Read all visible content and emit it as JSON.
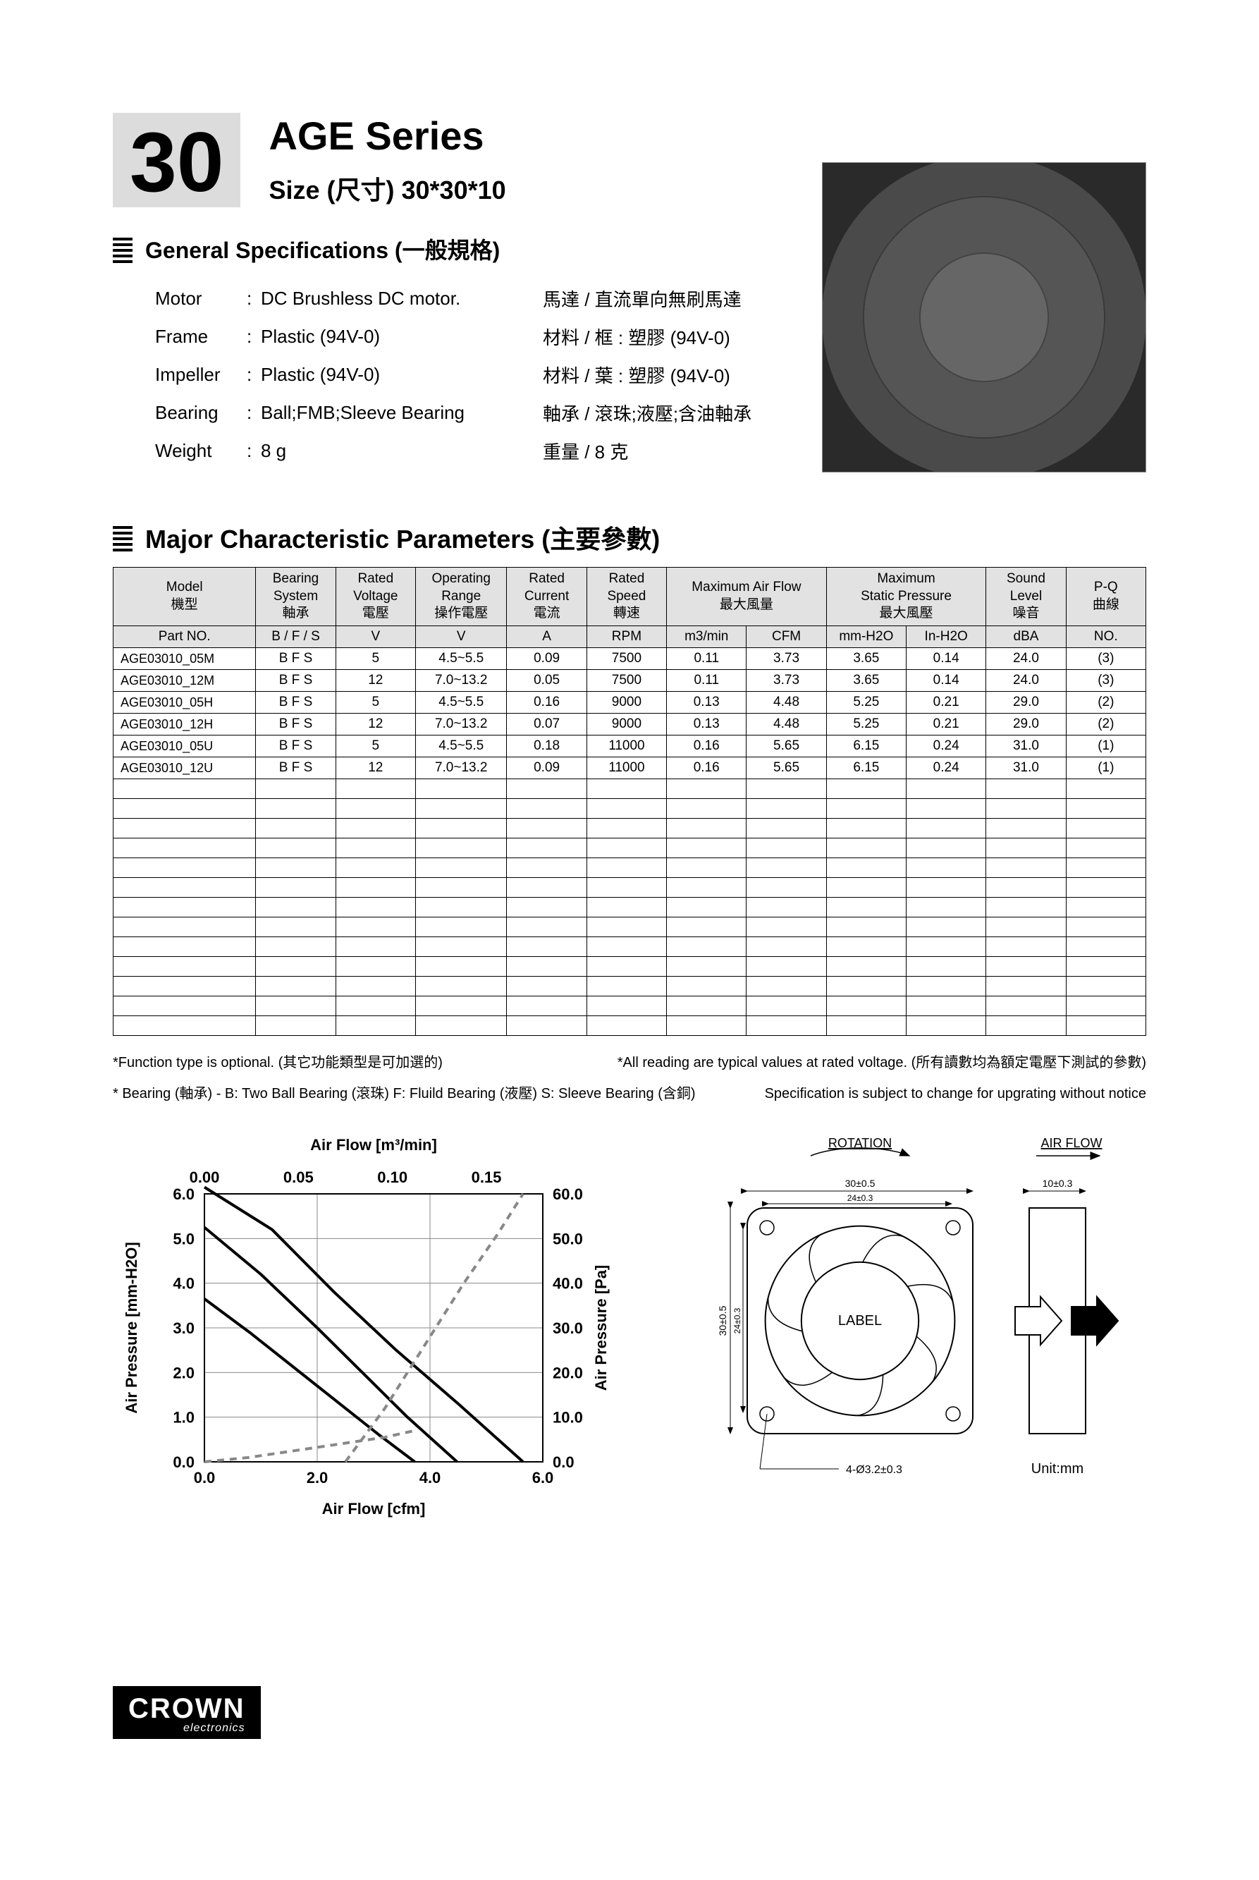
{
  "header": {
    "number": "30",
    "series_title": "AGE Series",
    "size_line": "Size (尺寸) 30*30*10",
    "title_fontsize": 56,
    "size_fontsize": 36
  },
  "general_specs": {
    "section_title": "General Specifications  (一般規格)",
    "title_fontsize": 32,
    "rows": [
      {
        "label": "Motor",
        "value": "DC Brushless DC motor.",
        "zh": "馬達 / 直流單向無刷馬達"
      },
      {
        "label": "Frame",
        "value": "Plastic (94V-0)",
        "zh": "材料 / 框 : 塑膠 (94V-0)"
      },
      {
        "label": "Impeller",
        "value": "Plastic (94V-0)",
        "zh": "材料 / 葉 : 塑膠 (94V-0)"
      },
      {
        "label": "Bearing",
        "value": "Ball;FMB;Sleeve Bearing",
        "zh": "軸承 / 滾珠;液壓;含油軸承"
      },
      {
        "label": "Weight",
        "value": "8  g",
        "zh": "重量 / 8  克"
      }
    ]
  },
  "params": {
    "section_title": "Major Characteristic Parameters (主要參數)",
    "title_fontsize": 36,
    "col_widths_pct": [
      12.5,
      7,
      7,
      8,
      7,
      7,
      7,
      7,
      7,
      7,
      7,
      7
    ],
    "header_row1": [
      {
        "text": "Model\n機型",
        "span": 1
      },
      {
        "text": "Bearing\nSystem\n軸承",
        "span": 1
      },
      {
        "text": "Rated\nVoltage\n電壓",
        "span": 1
      },
      {
        "text": "Operating\nRange\n操作電壓",
        "span": 1
      },
      {
        "text": "Rated\nCurrent\n電流",
        "span": 1
      },
      {
        "text": "Rated\nSpeed\n轉速",
        "span": 1
      },
      {
        "text": "Maximum Air Flow\n最大風量",
        "span": 2
      },
      {
        "text": "Maximum\nStatic  Pressure\n最大風壓",
        "span": 2
      },
      {
        "text": "Sound\nLevel\n噪音",
        "span": 1
      },
      {
        "text": "P-Q\n曲線",
        "span": 1
      }
    ],
    "header_row2": [
      "Part NO.",
      "B / F / S",
      "V",
      "V",
      "A",
      "RPM",
      "m3/min",
      "CFM",
      "mm-H2O",
      "In-H2O",
      "dBA",
      "NO."
    ],
    "rows": [
      [
        "AGE03010_05M",
        "B F S",
        "5",
        "4.5~5.5",
        "0.09",
        "7500",
        "0.11",
        "3.73",
        "3.65",
        "0.14",
        "24.0",
        "(3)"
      ],
      [
        "AGE03010_12M",
        "B F S",
        "12",
        "7.0~13.2",
        "0.05",
        "7500",
        "0.11",
        "3.73",
        "3.65",
        "0.14",
        "24.0",
        "(3)"
      ],
      [
        "AGE03010_05H",
        "B F S",
        "5",
        "4.5~5.5",
        "0.16",
        "9000",
        "0.13",
        "4.48",
        "5.25",
        "0.21",
        "29.0",
        "(2)"
      ],
      [
        "AGE03010_12H",
        "B F S",
        "12",
        "7.0~13.2",
        "0.07",
        "9000",
        "0.13",
        "4.48",
        "5.25",
        "0.21",
        "29.0",
        "(2)"
      ],
      [
        "AGE03010_05U",
        "B F S",
        "5",
        "4.5~5.5",
        "0.18",
        "11000",
        "0.16",
        "5.65",
        "6.15",
        "0.24",
        "31.0",
        "(1)"
      ],
      [
        "AGE03010_12U",
        "B F S",
        "12",
        "7.0~13.2",
        "0.09",
        "11000",
        "0.16",
        "5.65",
        "6.15",
        "0.24",
        "31.0",
        "(1)"
      ]
    ],
    "empty_rows": 13
  },
  "footnotes": {
    "fn1_left": "*Function type is optional. (其它功能類型是可加選的)",
    "fn1_right": "*All reading are typical values at rated voltage. (所有讀數均為額定電壓下測試的參數)",
    "fn2_left": "* Bearing (軸承) - B: Two Ball Bearing (滾珠) F: Fluild Bearing (液壓)  S: Sleeve Bearing (含銅)",
    "fn2_right": "Specification is subject to change for upgrating without notice"
  },
  "chart": {
    "type": "line",
    "title_top": "Air Flow [m³/min]",
    "ylabel_left": "Air Pressure [mm-H2O]",
    "xlabel_bottom": "Air Flow [cfm]",
    "ylabel_right": "Air Pressure [Pa]",
    "title_fontsize": 22,
    "label_fontsize": 22,
    "tick_fontsize": 22,
    "background_color": "#ffffff",
    "grid_color": "#888888",
    "axis_color": "#000000",
    "xlim_bottom": [
      0.0,
      6.0
    ],
    "xtick_step_bottom": 2.0,
    "xlim_top": [
      0.0,
      0.18
    ],
    "xtick_step_top": 0.05,
    "ylim_left": [
      0.0,
      6.0
    ],
    "ytick_step_left": 1.0,
    "ylim_right": [
      0.0,
      60.0
    ],
    "ytick_step_right": 10.0,
    "series": [
      {
        "label": "(1)",
        "color": "#000000",
        "width": 4,
        "dash": "none",
        "x_cfm": [
          0.0,
          1.2,
          2.3,
          3.4,
          4.5,
          5.65
        ],
        "y_mmH2O": [
          6.15,
          5.2,
          3.8,
          2.5,
          1.3,
          0.0
        ]
      },
      {
        "label": "(2)",
        "color": "#000000",
        "width": 4,
        "dash": "none",
        "x_cfm": [
          0.0,
          1.0,
          2.0,
          2.8,
          3.6,
          4.48
        ],
        "y_mmH2O": [
          5.25,
          4.2,
          3.0,
          2.0,
          1.0,
          0.0
        ]
      },
      {
        "label": "(3)",
        "color": "#000000",
        "width": 4,
        "dash": "none",
        "x_cfm": [
          0.0,
          0.8,
          1.6,
          2.4,
          3.1,
          3.73
        ],
        "y_mmH2O": [
          3.65,
          2.9,
          2.1,
          1.3,
          0.6,
          0.0
        ]
      },
      {
        "label": "dashed-top",
        "color": "#888888",
        "width": 4,
        "dash": "10,8",
        "x_cfm": [
          2.5,
          3.2,
          3.9,
          4.6,
          5.2,
          5.65
        ],
        "y_mmH2O": [
          0.0,
          1.2,
          2.6,
          4.0,
          5.1,
          6.0
        ]
      },
      {
        "label": "dashed-bottom",
        "color": "#888888",
        "width": 4,
        "dash": "10,8",
        "x_cfm": [
          0.0,
          0.8,
          1.6,
          2.4,
          3.2,
          3.73
        ],
        "y_mmH2O": [
          0.0,
          0.1,
          0.25,
          0.4,
          0.55,
          0.7
        ]
      }
    ]
  },
  "diagram": {
    "rotation_label": "ROTATION",
    "airflow_label": "AIR FLOW",
    "center_label": "LABEL",
    "dim_outer": "30±0.5",
    "dim_inner": "24±0.3",
    "dim_side_v": "30±0.5",
    "dim_side_v2": "24±0.3",
    "dim_thick": "10±0.3",
    "dim_hole": "4-Ø3.2±0.3",
    "unit_label": "Unit:mm",
    "line_color": "#000000",
    "label_fontsize": 18
  },
  "logo": {
    "brand": "CROWN",
    "sub": "electronics"
  }
}
